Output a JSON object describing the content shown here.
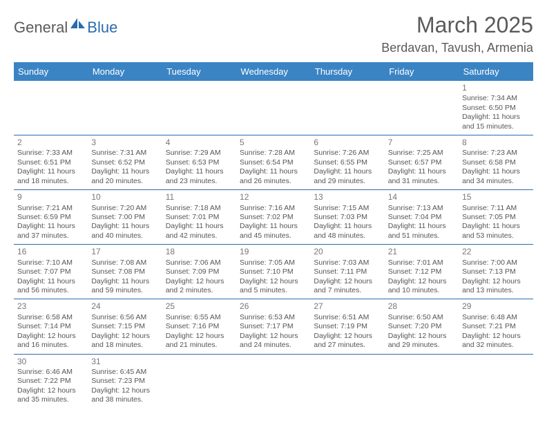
{
  "logo": {
    "text1": "General",
    "text2": "Blue"
  },
  "title": "March 2025",
  "location": "Berdavan, Tavush, Armenia",
  "colors": {
    "header_bg": "#3b84c4",
    "header_text": "#ffffff",
    "border": "#2a6bb0",
    "title_color": "#5a5a5a",
    "body_text": "#555555"
  },
  "dayHeaders": [
    "Sunday",
    "Monday",
    "Tuesday",
    "Wednesday",
    "Thursday",
    "Friday",
    "Saturday"
  ],
  "weeks": [
    [
      null,
      null,
      null,
      null,
      null,
      null,
      {
        "n": "1",
        "sr": "7:34 AM",
        "ss": "6:50 PM",
        "dl": "11 hours and 15 minutes."
      }
    ],
    [
      {
        "n": "2",
        "sr": "7:33 AM",
        "ss": "6:51 PM",
        "dl": "11 hours and 18 minutes."
      },
      {
        "n": "3",
        "sr": "7:31 AM",
        "ss": "6:52 PM",
        "dl": "11 hours and 20 minutes."
      },
      {
        "n": "4",
        "sr": "7:29 AM",
        "ss": "6:53 PM",
        "dl": "11 hours and 23 minutes."
      },
      {
        "n": "5",
        "sr": "7:28 AM",
        "ss": "6:54 PM",
        "dl": "11 hours and 26 minutes."
      },
      {
        "n": "6",
        "sr": "7:26 AM",
        "ss": "6:55 PM",
        "dl": "11 hours and 29 minutes."
      },
      {
        "n": "7",
        "sr": "7:25 AM",
        "ss": "6:57 PM",
        "dl": "11 hours and 31 minutes."
      },
      {
        "n": "8",
        "sr": "7:23 AM",
        "ss": "6:58 PM",
        "dl": "11 hours and 34 minutes."
      }
    ],
    [
      {
        "n": "9",
        "sr": "7:21 AM",
        "ss": "6:59 PM",
        "dl": "11 hours and 37 minutes."
      },
      {
        "n": "10",
        "sr": "7:20 AM",
        "ss": "7:00 PM",
        "dl": "11 hours and 40 minutes."
      },
      {
        "n": "11",
        "sr": "7:18 AM",
        "ss": "7:01 PM",
        "dl": "11 hours and 42 minutes."
      },
      {
        "n": "12",
        "sr": "7:16 AM",
        "ss": "7:02 PM",
        "dl": "11 hours and 45 minutes."
      },
      {
        "n": "13",
        "sr": "7:15 AM",
        "ss": "7:03 PM",
        "dl": "11 hours and 48 minutes."
      },
      {
        "n": "14",
        "sr": "7:13 AM",
        "ss": "7:04 PM",
        "dl": "11 hours and 51 minutes."
      },
      {
        "n": "15",
        "sr": "7:11 AM",
        "ss": "7:05 PM",
        "dl": "11 hours and 53 minutes."
      }
    ],
    [
      {
        "n": "16",
        "sr": "7:10 AM",
        "ss": "7:07 PM",
        "dl": "11 hours and 56 minutes."
      },
      {
        "n": "17",
        "sr": "7:08 AM",
        "ss": "7:08 PM",
        "dl": "11 hours and 59 minutes."
      },
      {
        "n": "18",
        "sr": "7:06 AM",
        "ss": "7:09 PM",
        "dl": "12 hours and 2 minutes."
      },
      {
        "n": "19",
        "sr": "7:05 AM",
        "ss": "7:10 PM",
        "dl": "12 hours and 5 minutes."
      },
      {
        "n": "20",
        "sr": "7:03 AM",
        "ss": "7:11 PM",
        "dl": "12 hours and 7 minutes."
      },
      {
        "n": "21",
        "sr": "7:01 AM",
        "ss": "7:12 PM",
        "dl": "12 hours and 10 minutes."
      },
      {
        "n": "22",
        "sr": "7:00 AM",
        "ss": "7:13 PM",
        "dl": "12 hours and 13 minutes."
      }
    ],
    [
      {
        "n": "23",
        "sr": "6:58 AM",
        "ss": "7:14 PM",
        "dl": "12 hours and 16 minutes."
      },
      {
        "n": "24",
        "sr": "6:56 AM",
        "ss": "7:15 PM",
        "dl": "12 hours and 18 minutes."
      },
      {
        "n": "25",
        "sr": "6:55 AM",
        "ss": "7:16 PM",
        "dl": "12 hours and 21 minutes."
      },
      {
        "n": "26",
        "sr": "6:53 AM",
        "ss": "7:17 PM",
        "dl": "12 hours and 24 minutes."
      },
      {
        "n": "27",
        "sr": "6:51 AM",
        "ss": "7:19 PM",
        "dl": "12 hours and 27 minutes."
      },
      {
        "n": "28",
        "sr": "6:50 AM",
        "ss": "7:20 PM",
        "dl": "12 hours and 29 minutes."
      },
      {
        "n": "29",
        "sr": "6:48 AM",
        "ss": "7:21 PM",
        "dl": "12 hours and 32 minutes."
      }
    ],
    [
      {
        "n": "30",
        "sr": "6:46 AM",
        "ss": "7:22 PM",
        "dl": "12 hours and 35 minutes."
      },
      {
        "n": "31",
        "sr": "6:45 AM",
        "ss": "7:23 PM",
        "dl": "12 hours and 38 minutes."
      },
      null,
      null,
      null,
      null,
      null
    ]
  ],
  "labels": {
    "sunrise": "Sunrise: ",
    "sunset": "Sunset: ",
    "daylight": "Daylight: "
  }
}
